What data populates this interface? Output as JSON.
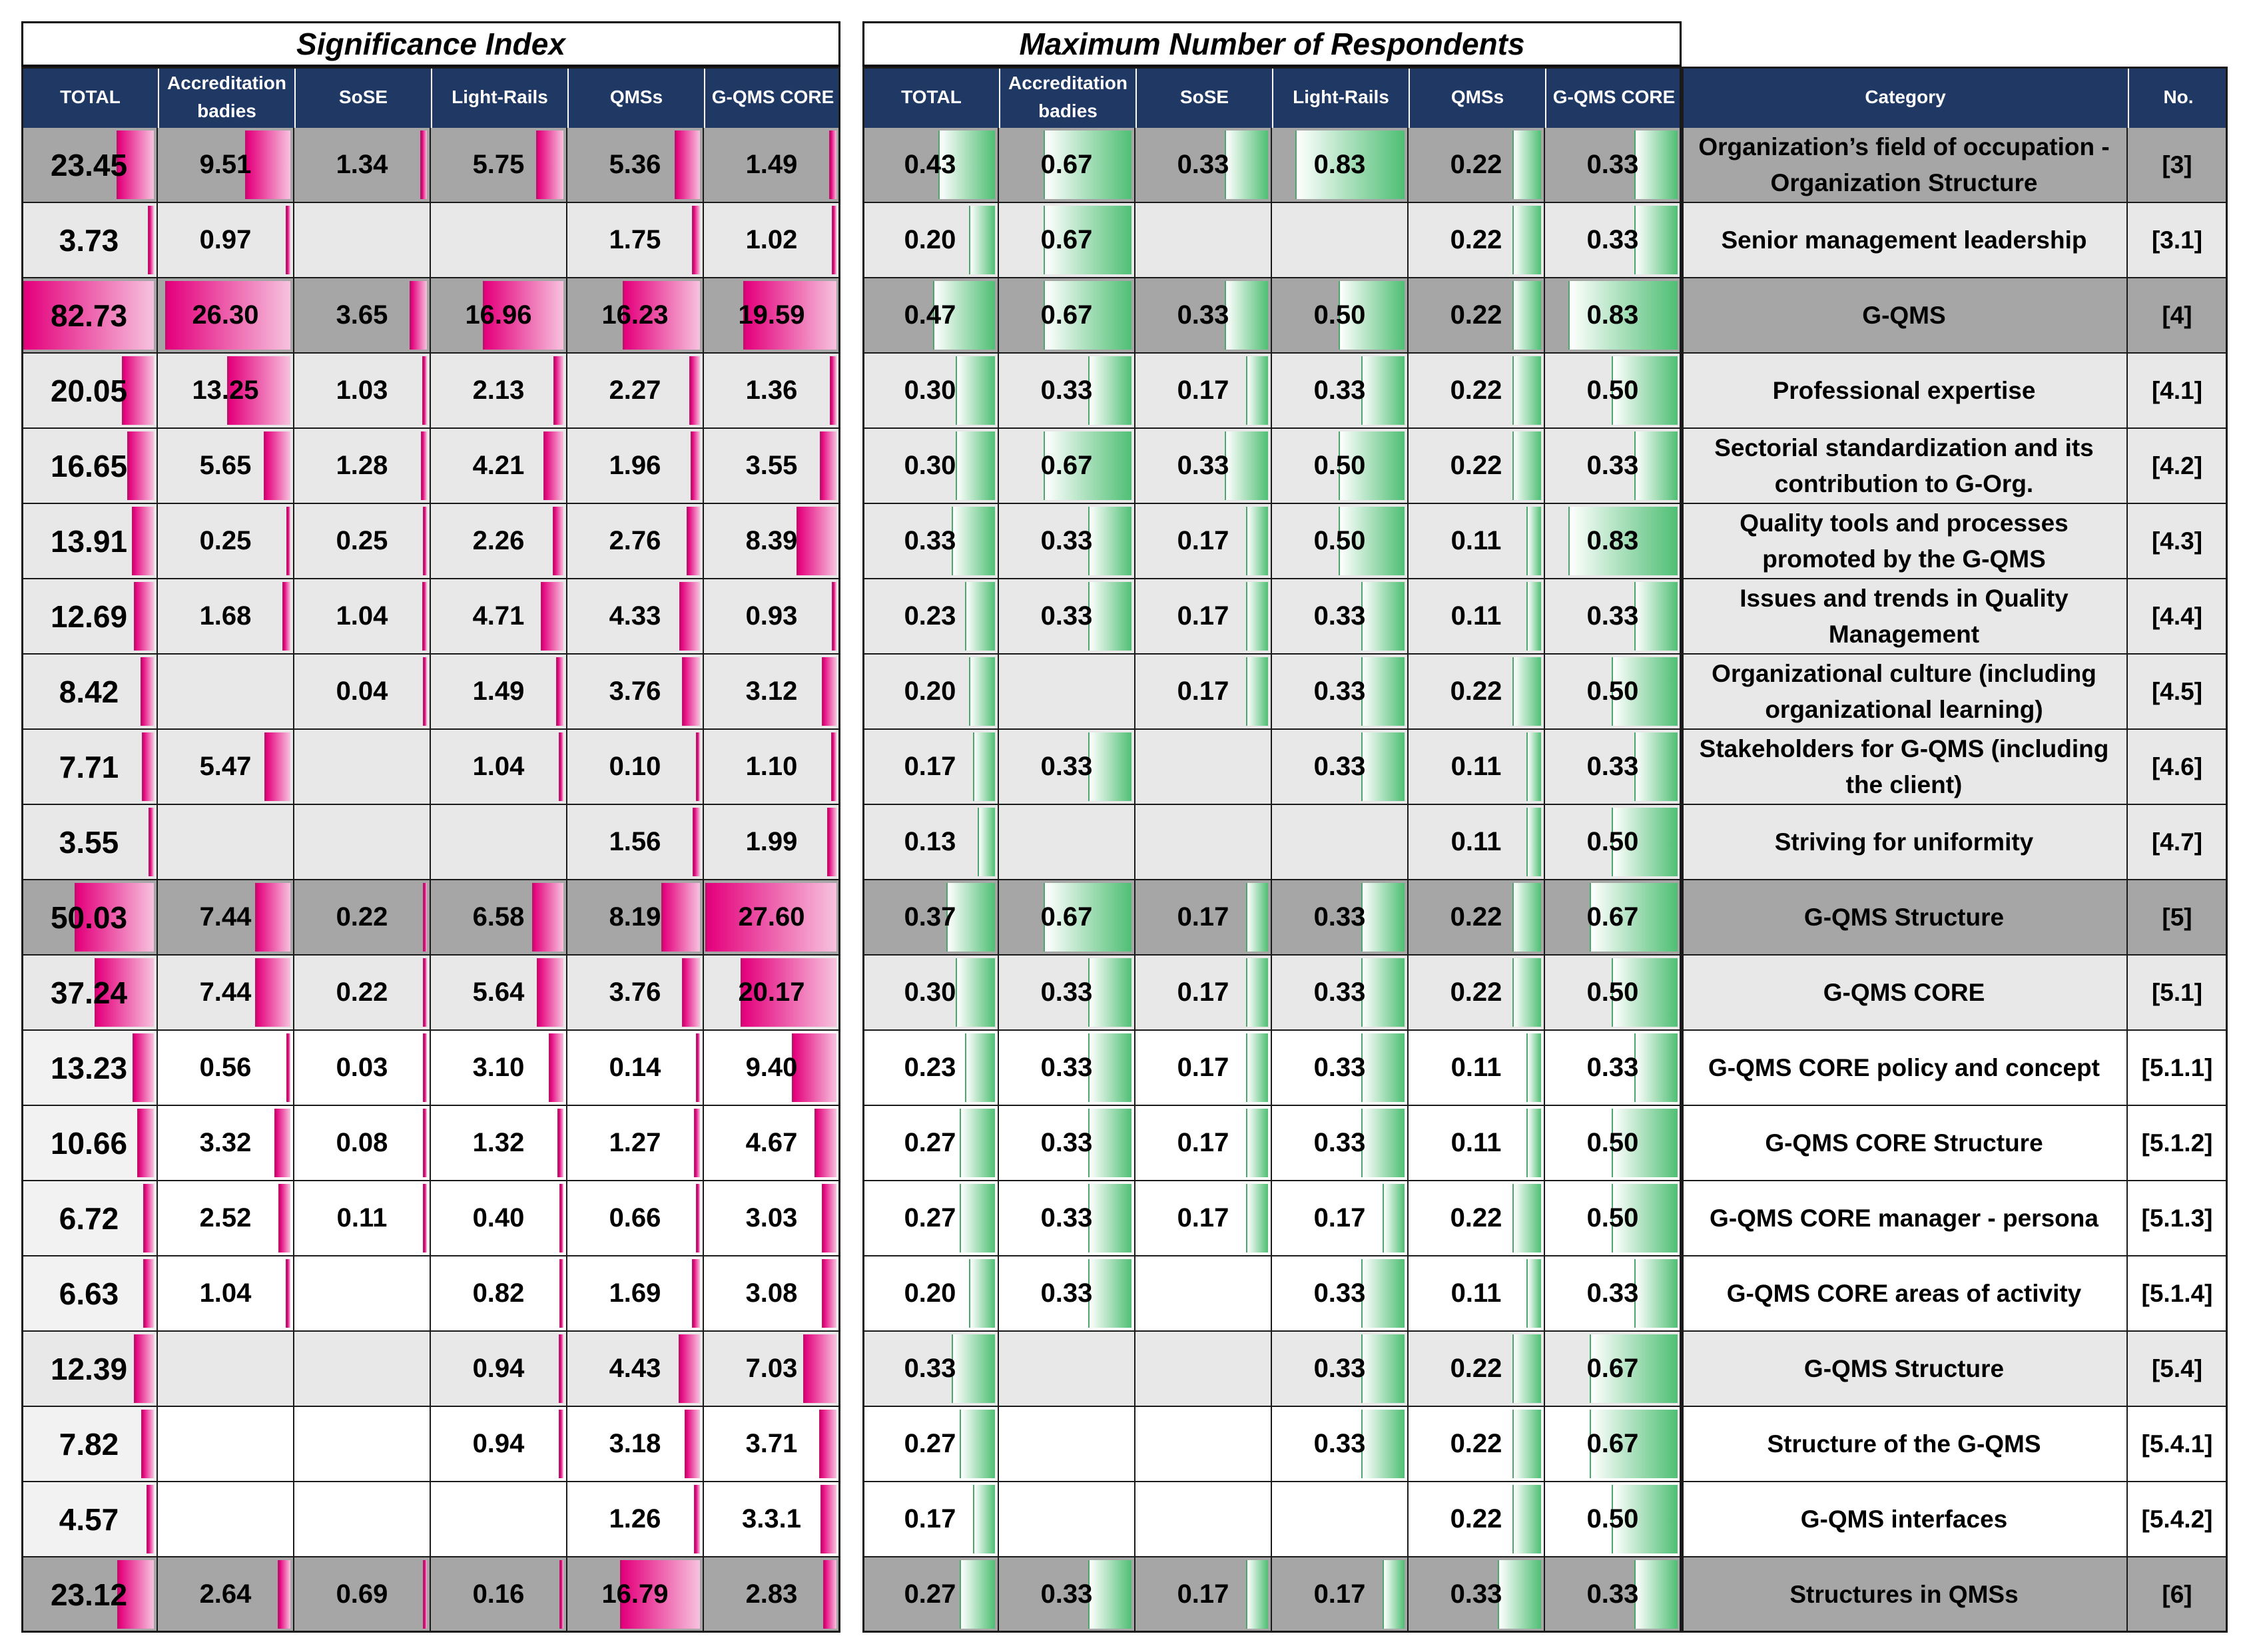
{
  "chart_data": {
    "type": "table",
    "titles": {
      "significance": "Significance Index",
      "respondents": "Maximum Number of Respondents"
    },
    "significance_columns": [
      "TOTAL",
      "Accreditation badies",
      "SoSE",
      "Light-Rails",
      "QMSs",
      "G-QMS CORE"
    ],
    "respondents_columns": [
      "TOTAL",
      "Accreditation badies",
      "SoSE",
      "Light-Rails",
      "QMSs",
      "G-QMS CORE"
    ],
    "category_header": "Category",
    "number_header": "No.",
    "rows": [
      {
        "category": "Organization’s field of occupation - Organization Structure",
        "no": "[3]",
        "level": "main",
        "significance": [
          "23.45",
          "9.51",
          "1.34",
          "5.75",
          "5.36",
          "1.49"
        ],
        "respondents": [
          "0.43",
          "0.67",
          "0.33",
          "0.83",
          "0.22",
          "0.33"
        ]
      },
      {
        "category": "Senior management leadership",
        "no": "[3.1]",
        "level": "sub",
        "significance": [
          "3.73",
          "0.97",
          "",
          "",
          "1.75",
          "1.02"
        ],
        "respondents": [
          "0.20",
          "0.67",
          "",
          "",
          "0.22",
          "0.33"
        ]
      },
      {
        "category": "G-QMS",
        "no": "[4]",
        "level": "main",
        "significance": [
          "82.73",
          "26.30",
          "3.65",
          "16.96",
          "16.23",
          "19.59"
        ],
        "respondents": [
          "0.47",
          "0.67",
          "0.33",
          "0.50",
          "0.22",
          "0.83"
        ]
      },
      {
        "category": "Professional expertise",
        "no": "[4.1]",
        "level": "sub",
        "significance": [
          "20.05",
          "13.25",
          "1.03",
          "2.13",
          "2.27",
          "1.36"
        ],
        "respondents": [
          "0.30",
          "0.33",
          "0.17",
          "0.33",
          "0.22",
          "0.50"
        ]
      },
      {
        "category": "Sectorial standardization and its contribution to G-Org.",
        "no": "[4.2]",
        "level": "sub",
        "significance": [
          "16.65",
          "5.65",
          "1.28",
          "4.21",
          "1.96",
          "3.55"
        ],
        "respondents": [
          "0.30",
          "0.67",
          "0.33",
          "0.50",
          "0.22",
          "0.33"
        ]
      },
      {
        "category": "Quality tools and processes promoted by the G-QMS",
        "no": "[4.3]",
        "level": "sub",
        "significance": [
          "13.91",
          "0.25",
          "0.25",
          "2.26",
          "2.76",
          "8.39"
        ],
        "respondents": [
          "0.33",
          "0.33",
          "0.17",
          "0.50",
          "0.11",
          "0.83"
        ]
      },
      {
        "category": "Issues and trends in Quality Management",
        "no": "[4.4]",
        "level": "sub",
        "significance": [
          "12.69",
          "1.68",
          "1.04",
          "4.71",
          "4.33",
          "0.93"
        ],
        "respondents": [
          "0.23",
          "0.33",
          "0.17",
          "0.33",
          "0.11",
          "0.33"
        ]
      },
      {
        "category": "Organizational culture (including organizational learning)",
        "no": "[4.5]",
        "level": "sub",
        "significance": [
          "8.42",
          "",
          "0.04",
          "1.49",
          "3.76",
          "3.12"
        ],
        "respondents": [
          "0.20",
          "",
          "0.17",
          "0.33",
          "0.22",
          "0.50"
        ]
      },
      {
        "category": "Stakeholders for G-QMS (including the client)",
        "no": "[4.6]",
        "level": "sub",
        "significance": [
          "7.71",
          "5.47",
          "",
          "1.04",
          "0.10",
          "1.10"
        ],
        "respondents": [
          "0.17",
          "0.33",
          "",
          "0.33",
          "0.11",
          "0.33"
        ]
      },
      {
        "category": "Striving for uniformity",
        "no": "[4.7]",
        "level": "sub",
        "significance": [
          "3.55",
          "",
          "",
          "",
          "1.56",
          "1.99"
        ],
        "respondents": [
          "0.13",
          "",
          "",
          "",
          "0.11",
          "0.50"
        ]
      },
      {
        "category": "G-QMS Structure",
        "no": "[5]",
        "level": "main",
        "significance": [
          "50.03",
          "7.44",
          "0.22",
          "6.58",
          "8.19",
          "27.60"
        ],
        "respondents": [
          "0.37",
          "0.67",
          "0.17",
          "0.33",
          "0.22",
          "0.67"
        ]
      },
      {
        "category": "G-QMS CORE",
        "no": "[5.1]",
        "level": "sub",
        "significance": [
          "37.24",
          "7.44",
          "0.22",
          "5.64",
          "3.76",
          "20.17"
        ],
        "respondents": [
          "0.30",
          "0.33",
          "0.17",
          "0.33",
          "0.22",
          "0.50"
        ]
      },
      {
        "category": "G-QMS CORE policy and concept",
        "no": "[5.1.1]",
        "level": "subsub",
        "significance": [
          "13.23",
          "0.56",
          "0.03",
          "3.10",
          "0.14",
          "9.40"
        ],
        "respondents": [
          "0.23",
          "0.33",
          "0.17",
          "0.33",
          "0.11",
          "0.33"
        ]
      },
      {
        "category": "G-QMS CORE Structure",
        "no": "[5.1.2]",
        "level": "subsub",
        "significance": [
          "10.66",
          "3.32",
          "0.08",
          "1.32",
          "1.27",
          "4.67"
        ],
        "respondents": [
          "0.27",
          "0.33",
          "0.17",
          "0.33",
          "0.11",
          "0.50"
        ]
      },
      {
        "category": "G-QMS CORE manager - persona",
        "no": "[5.1.3]",
        "level": "subsub",
        "significance": [
          "6.72",
          "2.52",
          "0.11",
          "0.40",
          "0.66",
          "3.03"
        ],
        "respondents": [
          "0.27",
          "0.33",
          "0.17",
          "0.17",
          "0.22",
          "0.50"
        ]
      },
      {
        "category": "G-QMS CORE areas of activity",
        "no": "[5.1.4]",
        "level": "subsub",
        "significance": [
          "6.63",
          "1.04",
          "",
          "0.82",
          "1.69",
          "3.08"
        ],
        "respondents": [
          "0.20",
          "0.33",
          "",
          "0.33",
          "0.11",
          "0.33"
        ]
      },
      {
        "category": "G-QMS Structure",
        "no": "[5.4]",
        "level": "sub",
        "significance": [
          "12.39",
          "",
          "",
          "0.94",
          "4.43",
          "7.03"
        ],
        "respondents": [
          "0.33",
          "",
          "",
          "0.33",
          "0.22",
          "0.67"
        ]
      },
      {
        "category": "Structure of the G-QMS",
        "no": "[5.4.1]",
        "level": "subsub",
        "significance": [
          "7.82",
          "",
          "",
          "0.94",
          "3.18",
          "3.71"
        ],
        "respondents": [
          "0.27",
          "",
          "",
          "0.33",
          "0.22",
          "0.67"
        ]
      },
      {
        "category": "G-QMS interfaces",
        "no": "[5.4.2]",
        "level": "subsub",
        "significance": [
          "4.57",
          "",
          "",
          "",
          "1.26",
          "3.3.1"
        ],
        "respondents": [
          "0.17",
          "",
          "",
          "",
          "0.22",
          "0.50"
        ]
      },
      {
        "category": "Structures in QMSs",
        "no": "[6]",
        "level": "main",
        "significance": [
          "23.12",
          "2.64",
          "0.69",
          "0.16",
          "16.79",
          "2.83"
        ],
        "respondents": [
          "0.27",
          "0.33",
          "0.17",
          "0.17",
          "0.33",
          "0.33"
        ]
      }
    ],
    "colors": {
      "header_bg": "#1f3864",
      "header_text": "#ffffff",
      "main_row_bg": "#a6a6a6",
      "sub_row_bg": "#e8e8e8",
      "subsub_row_bg": "#ffffff",
      "significance_bar": "#e4007c",
      "respondents_bar": "#4fbf74"
    }
  }
}
